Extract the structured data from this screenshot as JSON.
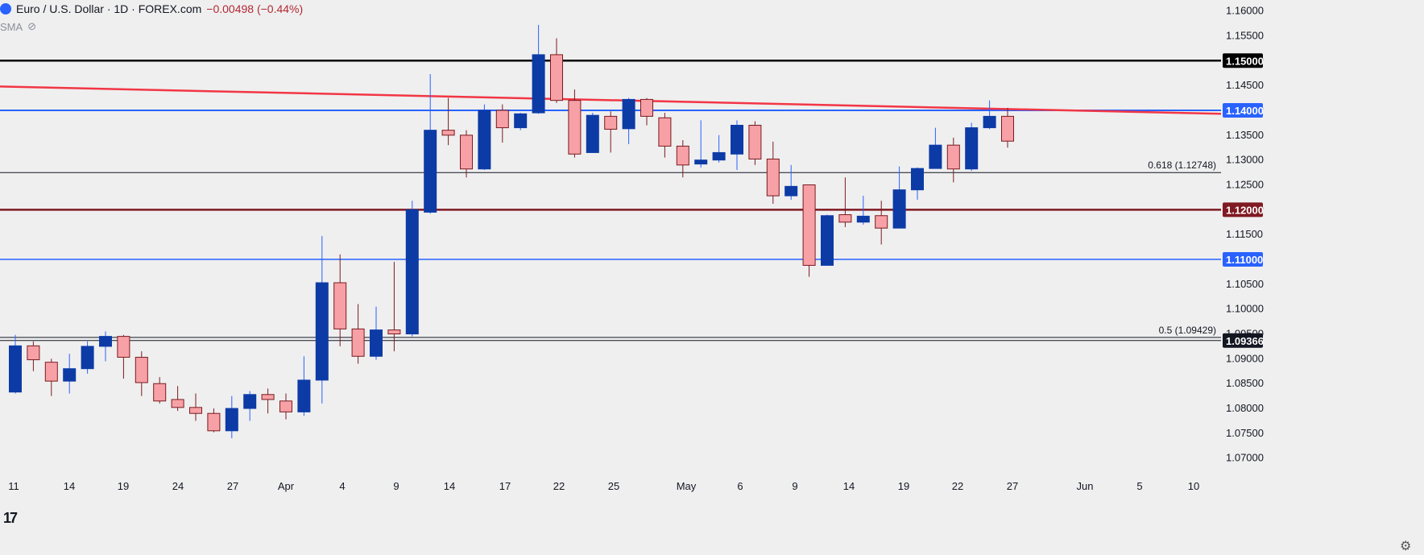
{
  "header": {
    "title": "Euro / U.S. Dollar · 1D · FOREX.com",
    "change": "−0.00498 (−0.44%)",
    "indicator": "SMA",
    "logo_icon": "euro-flag-icon",
    "eye_icon": "eye-off-icon"
  },
  "chart_data": {
    "type": "candlestick",
    "ylim": [
      1.0672,
      1.1614
    ],
    "price_ticks": [
      "1.16000",
      "1.15500",
      "1.15000",
      "1.14500",
      "1.14000",
      "1.13500",
      "1.13000",
      "1.12500",
      "1.12000",
      "1.11500",
      "1.11000",
      "1.10500",
      "1.10000",
      "1.09500",
      "1.09000",
      "1.08500",
      "1.08000",
      "1.07500",
      "1.07000"
    ],
    "date_labels": [
      "11",
      "14",
      "19",
      "24",
      "27",
      "Apr",
      "4",
      "9",
      "14",
      "17",
      "22",
      "25",
      "May",
      "6",
      "9",
      "14",
      "19",
      "22",
      "27",
      "Jun",
      "5",
      "10"
    ],
    "candles": [
      {
        "date": "Mar 11",
        "o": 1.0833,
        "h": 1.0948,
        "l": 1.083,
        "c": 1.0926
      },
      {
        "date": "Mar 12",
        "o": 1.0926,
        "h": 1.0935,
        "l": 1.0875,
        "c": 1.0898
      },
      {
        "date": "Mar 13",
        "o": 1.0893,
        "h": 1.09,
        "l": 1.0825,
        "c": 1.0855
      },
      {
        "date": "Mar 14",
        "o": 1.0855,
        "h": 1.091,
        "l": 1.083,
        "c": 1.088
      },
      {
        "date": "Mar 17",
        "o": 1.088,
        "h": 1.0935,
        "l": 1.087,
        "c": 1.0925
      },
      {
        "date": "Mar 18",
        "o": 1.0925,
        "h": 1.0955,
        "l": 1.0895,
        "c": 1.0945
      },
      {
        "date": "Mar 19",
        "o": 1.0945,
        "h": 1.0948,
        "l": 1.086,
        "c": 1.0903
      },
      {
        "date": "Mar 20",
        "o": 1.0903,
        "h": 1.0915,
        "l": 1.0825,
        "c": 1.0852
      },
      {
        "date": "Mar 21",
        "o": 1.085,
        "h": 1.0863,
        "l": 1.081,
        "c": 1.0815
      },
      {
        "date": "Mar 24",
        "o": 1.0818,
        "h": 1.0845,
        "l": 1.0795,
        "c": 1.0802
      },
      {
        "date": "Mar 25",
        "o": 1.0802,
        "h": 1.083,
        "l": 1.0775,
        "c": 1.079
      },
      {
        "date": "Mar 26",
        "o": 1.079,
        "h": 1.08,
        "l": 1.0752,
        "c": 1.0755
      },
      {
        "date": "Mar 27",
        "o": 1.0755,
        "h": 1.0825,
        "l": 1.074,
        "c": 1.08
      },
      {
        "date": "Mar 28",
        "o": 1.08,
        "h": 1.0835,
        "l": 1.0775,
        "c": 1.0828
      },
      {
        "date": "Mar 31",
        "o": 1.0828,
        "h": 1.084,
        "l": 1.079,
        "c": 1.0818
      },
      {
        "date": "Apr 1",
        "o": 1.0815,
        "h": 1.083,
        "l": 1.0778,
        "c": 1.0793
      },
      {
        "date": "Apr 2",
        "o": 1.0793,
        "h": 1.0905,
        "l": 1.0785,
        "c": 1.0857
      },
      {
        "date": "Apr 3",
        "o": 1.0857,
        "h": 1.1147,
        "l": 1.081,
        "c": 1.1053
      },
      {
        "date": "Apr 4",
        "o": 1.1053,
        "h": 1.111,
        "l": 1.0925,
        "c": 1.096
      },
      {
        "date": "Apr 7",
        "o": 1.096,
        "h": 1.101,
        "l": 1.089,
        "c": 1.0905
      },
      {
        "date": "Apr 8",
        "o": 1.0905,
        "h": 1.1005,
        "l": 1.0898,
        "c": 1.0958
      },
      {
        "date": "Apr 9",
        "o": 1.0958,
        "h": 1.1095,
        "l": 1.0915,
        "c": 1.095
      },
      {
        "date": "Apr 10",
        "o": 1.095,
        "h": 1.1218,
        "l": 1.0945,
        "c": 1.12
      },
      {
        "date": "Apr 11",
        "o": 1.1195,
        "h": 1.1473,
        "l": 1.1192,
        "c": 1.136
      },
      {
        "date": "Apr 14",
        "o": 1.136,
        "h": 1.1425,
        "l": 1.133,
        "c": 1.135
      },
      {
        "date": "Apr 15",
        "o": 1.135,
        "h": 1.136,
        "l": 1.1265,
        "c": 1.1282
      },
      {
        "date": "Apr 16",
        "o": 1.1282,
        "h": 1.1412,
        "l": 1.128,
        "c": 1.14
      },
      {
        "date": "Apr 17",
        "o": 1.14,
        "h": 1.1412,
        "l": 1.1335,
        "c": 1.1365
      },
      {
        "date": "Apr 18",
        "o": 1.1365,
        "h": 1.1395,
        "l": 1.136,
        "c": 1.1393
      },
      {
        "date": "Apr 21",
        "o": 1.1395,
        "h": 1.1572,
        "l": 1.1393,
        "c": 1.1512
      },
      {
        "date": "Apr 22",
        "o": 1.1512,
        "h": 1.1545,
        "l": 1.1415,
        "c": 1.142
      },
      {
        "date": "Apr 23",
        "o": 1.142,
        "h": 1.1442,
        "l": 1.1305,
        "c": 1.1312
      },
      {
        "date": "Apr 24",
        "o": 1.1315,
        "h": 1.1395,
        "l": 1.1315,
        "c": 1.139
      },
      {
        "date": "Apr 25",
        "o": 1.1388,
        "h": 1.1398,
        "l": 1.1315,
        "c": 1.1362
      },
      {
        "date": "Apr 28",
        "o": 1.1363,
        "h": 1.1425,
        "l": 1.1332,
        "c": 1.1422
      },
      {
        "date": "Apr 29",
        "o": 1.1422,
        "h": 1.1425,
        "l": 1.137,
        "c": 1.1388
      },
      {
        "date": "Apr 30",
        "o": 1.1385,
        "h": 1.1395,
        "l": 1.1305,
        "c": 1.1328
      },
      {
        "date": "May 1",
        "o": 1.1328,
        "h": 1.134,
        "l": 1.1265,
        "c": 1.129
      },
      {
        "date": "May 2",
        "o": 1.1292,
        "h": 1.138,
        "l": 1.1285,
        "c": 1.13
      },
      {
        "date": "May 5",
        "o": 1.13,
        "h": 1.135,
        "l": 1.1295,
        "c": 1.1315
      },
      {
        "date": "May 6",
        "o": 1.1312,
        "h": 1.138,
        "l": 1.128,
        "c": 1.137
      },
      {
        "date": "May 7",
        "o": 1.137,
        "h": 1.1378,
        "l": 1.129,
        "c": 1.1302
      },
      {
        "date": "May 8",
        "o": 1.1302,
        "h": 1.1337,
        "l": 1.1212,
        "c": 1.1228
      },
      {
        "date": "May 9",
        "o": 1.1228,
        "h": 1.129,
        "l": 1.122,
        "c": 1.1247
      },
      {
        "date": "May 12",
        "o": 1.125,
        "h": 1.125,
        "l": 1.1065,
        "c": 1.1088
      },
      {
        "date": "May 13",
        "o": 1.1088,
        "h": 1.119,
        "l": 1.1088,
        "c": 1.1188
      },
      {
        "date": "May 14",
        "o": 1.119,
        "h": 1.1265,
        "l": 1.1165,
        "c": 1.1175
      },
      {
        "date": "May 15",
        "o": 1.1175,
        "h": 1.1228,
        "l": 1.117,
        "c": 1.1187
      },
      {
        "date": "May 16",
        "o": 1.1188,
        "h": 1.1218,
        "l": 1.113,
        "c": 1.1163
      },
      {
        "date": "May 19",
        "o": 1.1163,
        "h": 1.1287,
        "l": 1.1163,
        "c": 1.124
      },
      {
        "date": "May 20",
        "o": 1.124,
        "h": 1.1285,
        "l": 1.122,
        "c": 1.1283
      },
      {
        "date": "May 21",
        "o": 1.1283,
        "h": 1.1365,
        "l": 1.1283,
        "c": 1.133
      },
      {
        "date": "May 22",
        "o": 1.133,
        "h": 1.1345,
        "l": 1.1255,
        "c": 1.1282
      },
      {
        "date": "May 23",
        "o": 1.1282,
        "h": 1.1375,
        "l": 1.1278,
        "c": 1.1365
      },
      {
        "date": "May 26",
        "o": 1.1365,
        "h": 1.142,
        "l": 1.1362,
        "c": 1.1388
      },
      {
        "date": "May 27",
        "o": 1.1388,
        "h": 1.1405,
        "l": 1.1325,
        "c": 1.1338
      }
    ],
    "horizontal_levels": [
      {
        "value": 1.15,
        "label": "1.15000",
        "color": "#000000",
        "badge": true,
        "width": 2.5
      },
      {
        "value": 1.14,
        "label": "1.14000",
        "color": "#2962ff",
        "badge": true,
        "width": 2
      },
      {
        "value": 1.12,
        "label": "1.12000",
        "color": "#801922",
        "badge": true,
        "width": 2.5
      },
      {
        "value": 1.11,
        "label": "1.11000",
        "color": "#2962ff",
        "badge": true,
        "width": 1.5
      },
      {
        "value": 1.09366,
        "label": "1.09366",
        "color": "#131722",
        "badge": true,
        "width": 1
      }
    ],
    "fib_levels": [
      {
        "value": 1.12748,
        "label": "0.618 (1.12748)"
      },
      {
        "value": 1.09429,
        "label": "0.5 (1.09429)"
      }
    ],
    "trendline": {
      "color": "#f23645",
      "from": {
        "date": "start",
        "price": 1.1448
      },
      "to": {
        "date": "end",
        "price": 1.1393
      }
    },
    "colors": {
      "up": "#0d3ba6",
      "down": "#f7a1a6",
      "down_border": "#7a1a20",
      "wick": "#2962ff",
      "wick_down": "#7a1a20",
      "bg": "#efefef"
    }
  },
  "footer": {
    "settings_icon": "gear-icon",
    "tv_logo": "tradingview-logo-icon"
  }
}
